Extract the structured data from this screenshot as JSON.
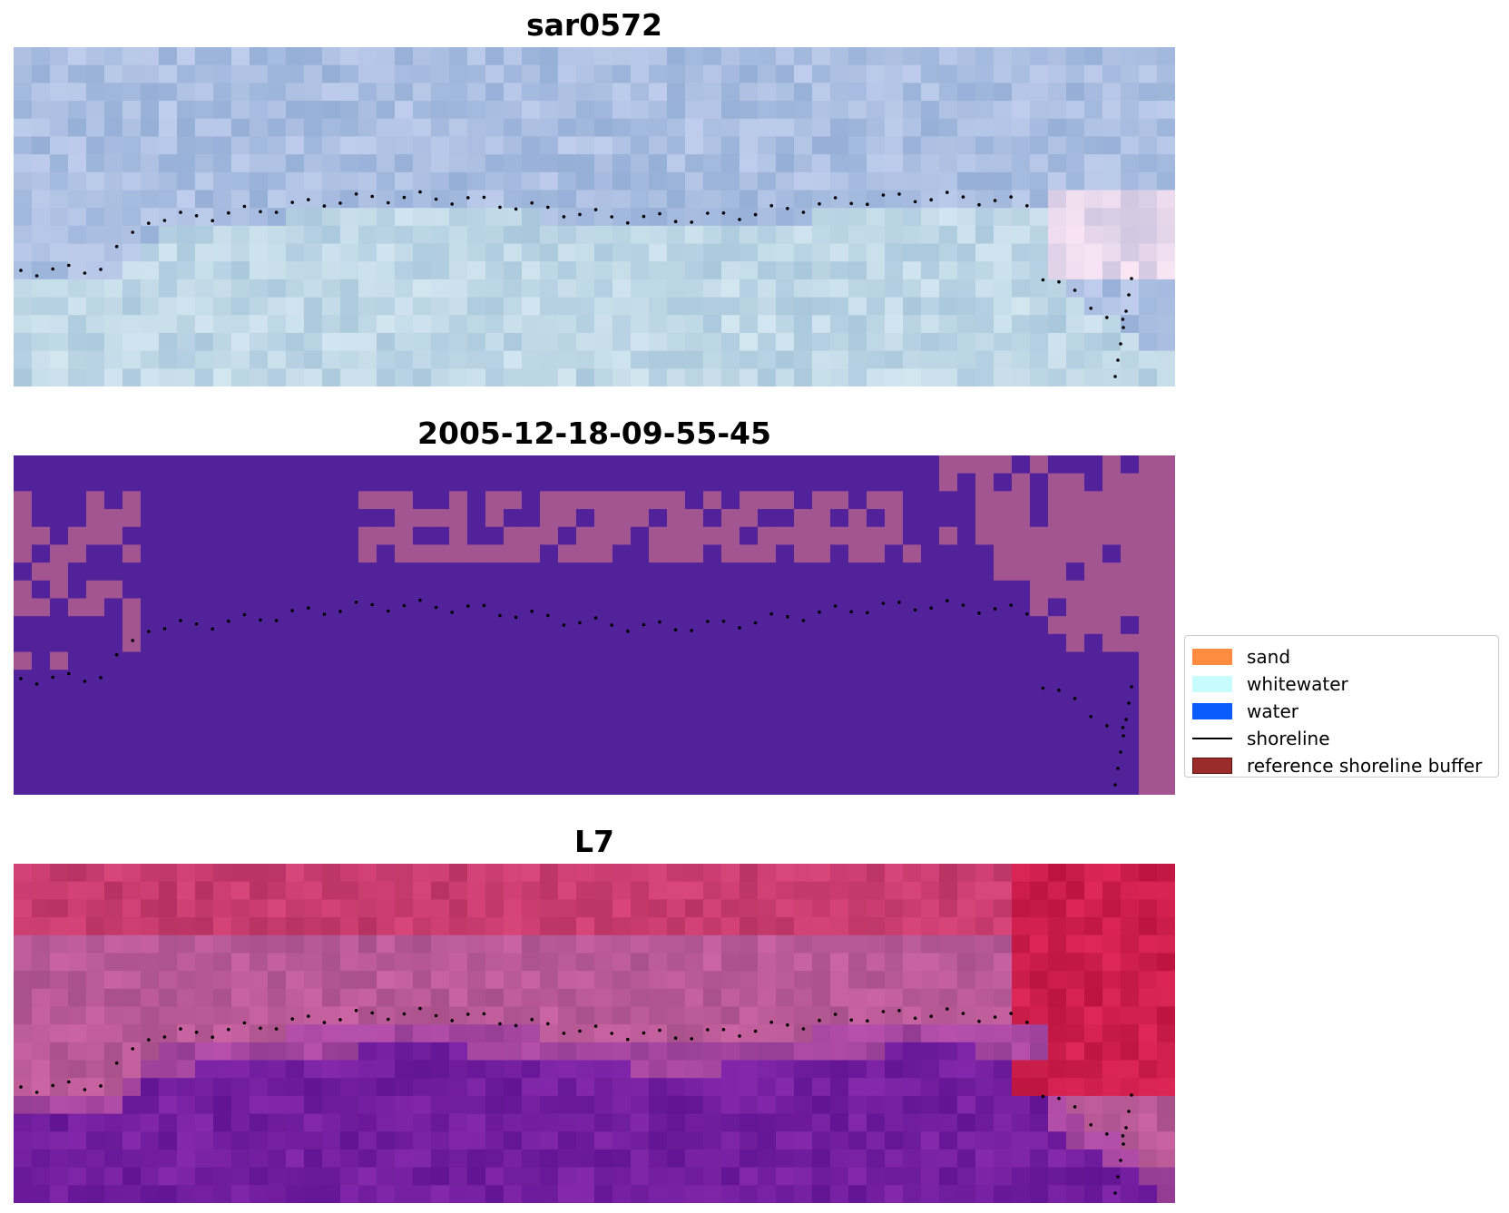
{
  "panels": [
    {
      "title": "sar0572"
    },
    {
      "title": "2005-12-18-09-55-45"
    },
    {
      "title": "L7"
    }
  ],
  "legend": {
    "items": [
      {
        "label": "sand",
        "color": "#ff8c40",
        "kind": "patch"
      },
      {
        "label": "whitewater",
        "color": "#c8fcfc",
        "kind": "patch"
      },
      {
        "label": "water",
        "color": "#0a5cff",
        "kind": "patch"
      },
      {
        "label": "shoreline",
        "color": "#000000",
        "kind": "line"
      },
      {
        "label": "reference shoreline buffer",
        "color": "#9b2c2c",
        "kind": "patch"
      }
    ]
  },
  "colors": {
    "rgb_base": "#aec3e0",
    "classified_water": "#52229a",
    "classified_land": "#a35592",
    "ndwi_land": "#c32659",
    "ndwi_water": "#6e1e9c",
    "shoreline_points": "#000000"
  }
}
